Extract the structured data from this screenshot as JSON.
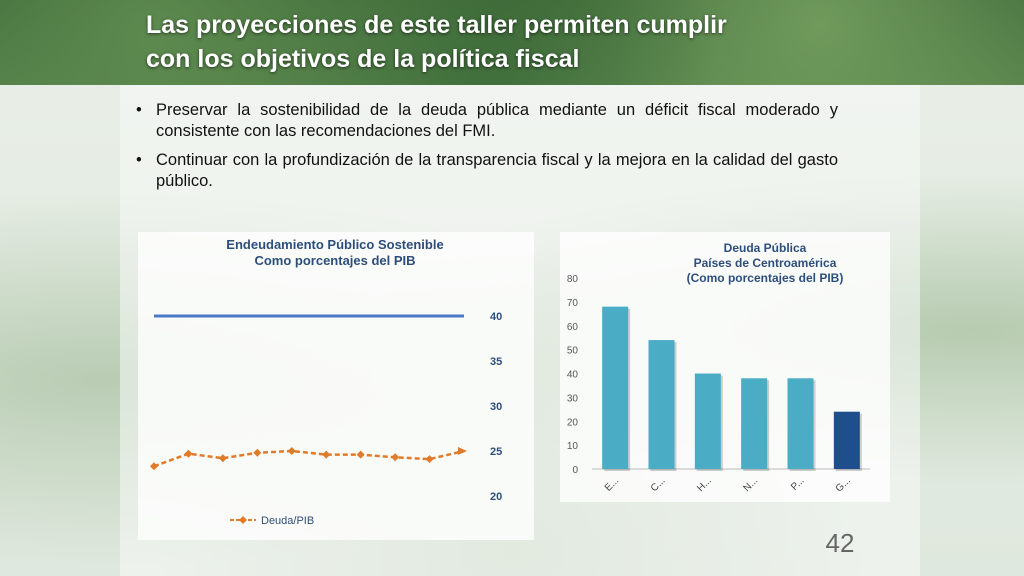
{
  "slide": {
    "title_line1": "Las proyecciones de este taller permiten cumplir",
    "title_line2": "con los objetivos de la política fiscal",
    "bullets": [
      "Preservar la sostenibilidad de la deuda pública mediante un déficit fiscal moderado y consistente con las recomendaciones del FMI.",
      "Continuar con la profundización de la transparencia fiscal y la mejora en la calidad del gasto público."
    ],
    "bullet_symbol": "•",
    "page_number": "42"
  },
  "line_chart": {
    "title_line1": "Endeudamiento Público Sostenible",
    "title_line2": "Como porcentajes del PIB",
    "legend_label": "Deuda/PIB"
  },
  "bar_chart": {
    "title_line1": "Deuda Pública",
    "title_line2": "Países de Centroamérica",
    "title_line3": "(Como porcentajes del PIB)"
  },
  "colors": {
    "threshold_line": "#4a78c8",
    "deuda_line": "#e07b29",
    "bar_light": "#4bacc6",
    "bar_dark": "#1f4e8c",
    "title_text": "#2d4e7b"
  },
  "chart_data": [
    {
      "type": "line",
      "title": "Endeudamiento Público Sostenible Como porcentajes del PIB",
      "ylim": [
        20,
        40
      ],
      "yticks": [
        "20",
        "25",
        "30",
        "35",
        "40"
      ],
      "series": [
        {
          "name": "",
          "style": "solid",
          "values": [
            40,
            40,
            40,
            40,
            40,
            40,
            40,
            40,
            40,
            40
          ]
        },
        {
          "name": "Deuda/PIB",
          "style": "dashed-diamond",
          "values": [
            23.3,
            24.7,
            24.2,
            24.8,
            25.0,
            24.6,
            24.6,
            24.3,
            24.1,
            25.0
          ]
        }
      ],
      "legend": "bottom-left"
    },
    {
      "type": "bar",
      "title": "Deuda Pública Países de Centroamérica (Como porcentajes del PIB)",
      "categories": [
        "E...",
        "C...",
        "H...",
        "N...",
        "P...",
        "G..."
      ],
      "values": [
        68,
        54,
        40,
        38,
        38,
        24
      ],
      "highlight_index": 5,
      "ylim": [
        0,
        80
      ],
      "yticks": [
        "0",
        "10",
        "20",
        "30",
        "40",
        "50",
        "60",
        "70",
        "80"
      ]
    }
  ]
}
